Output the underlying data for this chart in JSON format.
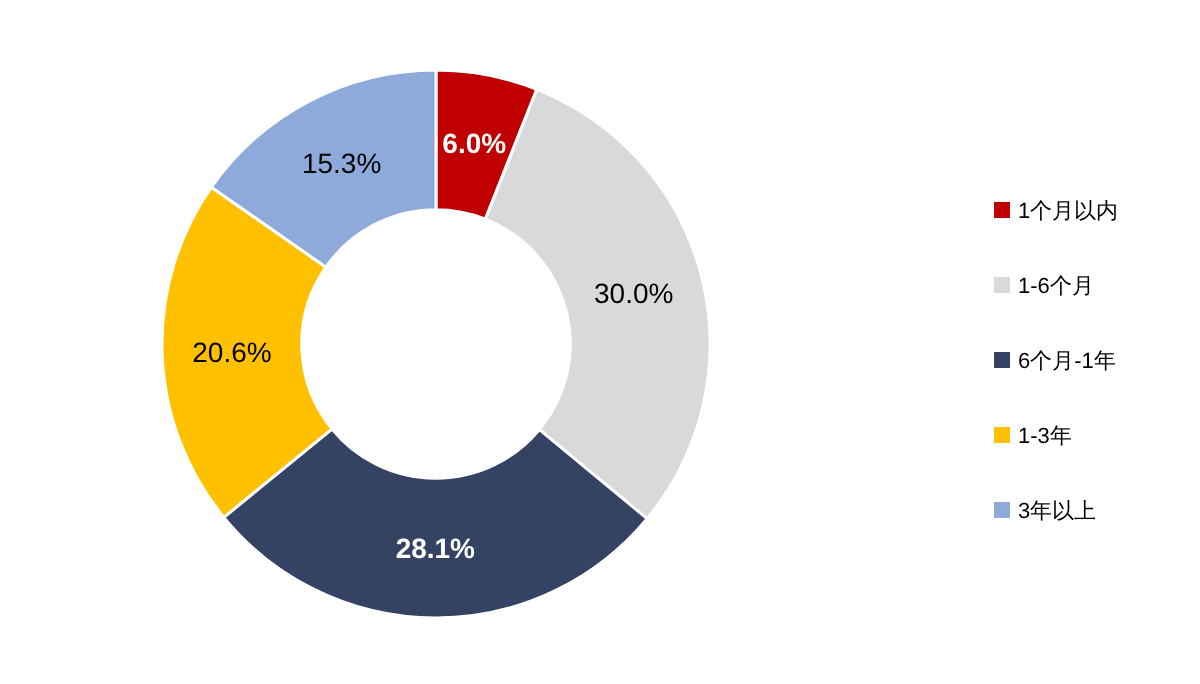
{
  "chart_data": {
    "type": "donut",
    "categories": [
      "1个月以内",
      "1-6个月",
      "6个月-1年",
      "1-3年",
      "3年以上"
    ],
    "values": [
      6.0,
      30.0,
      28.1,
      20.6,
      15.3
    ],
    "colors": [
      "#c00000",
      "#d9d9d9",
      "#344264",
      "#ffc000",
      "#8eaadb"
    ],
    "value_labels": [
      "6.0%",
      "30.0%",
      "28.1%",
      "20.6%",
      "15.3%"
    ],
    "legend": "right"
  }
}
